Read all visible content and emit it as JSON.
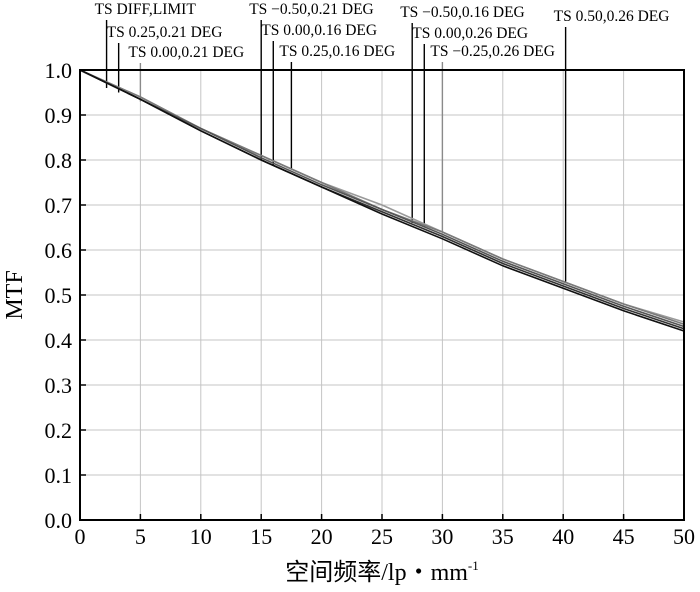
{
  "chart_data": {
    "type": "line",
    "xlabel": "空间频率/lp・mm",
    "xlabel_sup": "-1",
    "ylabel": "MTF",
    "xlim": [
      0,
      50
    ],
    "ylim": [
      0,
      1
    ],
    "x_ticks": [
      0,
      5,
      10,
      15,
      20,
      25,
      30,
      35,
      40,
      45,
      50
    ],
    "y_ticks": [
      0.0,
      0.1,
      0.2,
      0.3,
      0.4,
      0.5,
      0.6,
      0.7,
      0.8,
      0.9,
      1.0
    ],
    "x_tick_labels": [
      "0",
      "5",
      "10",
      "15",
      "20",
      "25",
      "30",
      "35",
      "40",
      "45",
      "50"
    ],
    "y_tick_labels": [
      "0.0",
      "0.1",
      "0.2",
      "0.3",
      "0.4",
      "0.5",
      "0.6",
      "0.7",
      "0.8",
      "0.9",
      "1.0"
    ],
    "grid": true,
    "x": [
      0,
      5,
      10,
      15,
      20,
      25,
      30,
      35,
      40,
      45,
      50
    ],
    "series": [
      {
        "values": [
          1.0,
          0.94,
          0.87,
          0.81,
          0.75,
          0.7,
          0.64,
          0.58,
          0.53,
          0.48,
          0.44
        ],
        "color": "#9a9a9a"
      },
      {
        "values": [
          1.0,
          0.94,
          0.87,
          0.81,
          0.75,
          0.69,
          0.64,
          0.58,
          0.53,
          0.48,
          0.435
        ],
        "color": "#7a7a7a"
      },
      {
        "values": [
          1.0,
          0.935,
          0.87,
          0.805,
          0.745,
          0.69,
          0.635,
          0.575,
          0.525,
          0.475,
          0.43
        ],
        "color": "#555555"
      },
      {
        "values": [
          1.0,
          0.935,
          0.865,
          0.8,
          0.74,
          0.685,
          0.63,
          0.57,
          0.52,
          0.47,
          0.425
        ],
        "color": "#333333"
      },
      {
        "values": [
          1.0,
          0.935,
          0.865,
          0.8,
          0.74,
          0.68,
          0.625,
          0.565,
          0.515,
          0.465,
          0.42
        ],
        "color": "#111111"
      }
    ],
    "annotations": [
      {
        "text": "TS DIFF,LIMIT",
        "x": 2.2,
        "y": 0.96
      },
      {
        "text": "TS 0.25,0.21 DEG",
        "x": 3.2,
        "y": 0.95
      },
      {
        "text": "TS 0.00,0.21 DEG",
        "x": 5.0,
        "y": 0.93
      },
      {
        "text": "TS −0.50,0.21 DEG",
        "x": 15.0,
        "y": 0.8
      },
      {
        "text": "TS 0.00,0.16 DEG",
        "x": 16.0,
        "y": 0.79
      },
      {
        "text": "TS 0.25,0.16 DEG",
        "x": 17.5,
        "y": 0.78
      },
      {
        "text": "TS −0.50,0.16 DEG",
        "x": 27.5,
        "y": 0.66
      },
      {
        "text": "TS 0.00,0.26 DEG",
        "x": 28.5,
        "y": 0.65
      },
      {
        "text": "TS −0.25,0.26 DEG",
        "x": 30.0,
        "y": 0.64
      },
      {
        "text": "TS 0.50,0.26 DEG",
        "x": 40.2,
        "y": 0.53
      }
    ]
  }
}
